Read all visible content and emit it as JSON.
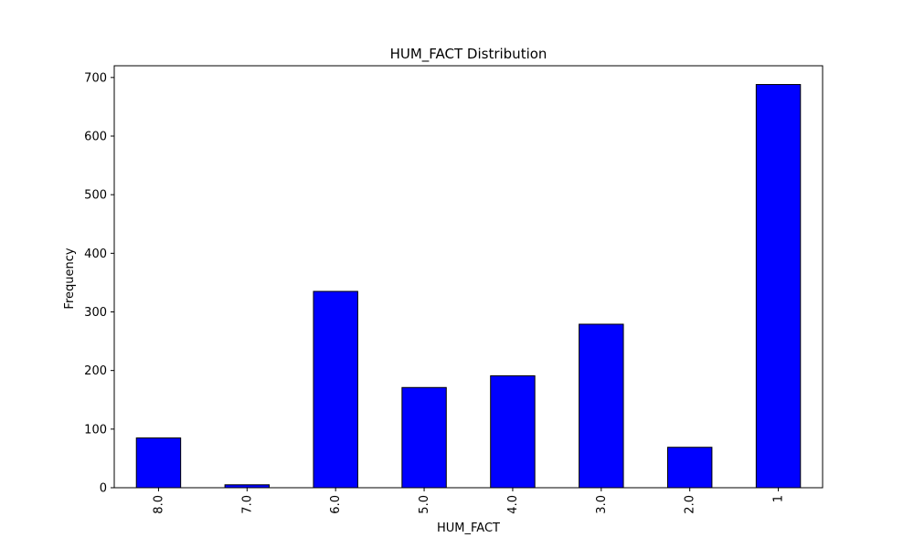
{
  "chart_data": {
    "type": "bar",
    "title": "HUM_FACT Distribution",
    "xlabel": "HUM_FACT",
    "ylabel": "Frequency",
    "categories": [
      "8.0",
      "7.0",
      "6.0",
      "5.0",
      "4.0",
      "3.0",
      "2.0",
      "1"
    ],
    "values": [
      85,
      5,
      335,
      171,
      191,
      279,
      69,
      688
    ],
    "ylim": [
      0,
      720
    ],
    "yticks": [
      0,
      100,
      200,
      300,
      400,
      500,
      600,
      700
    ],
    "ytick_labels": [
      "0",
      "100",
      "200",
      "300",
      "400",
      "500",
      "600",
      "700"
    ],
    "x_tick_rotation": "vertical",
    "grid": false,
    "bar_color": "#0000ff",
    "edge_color": "#000000"
  }
}
